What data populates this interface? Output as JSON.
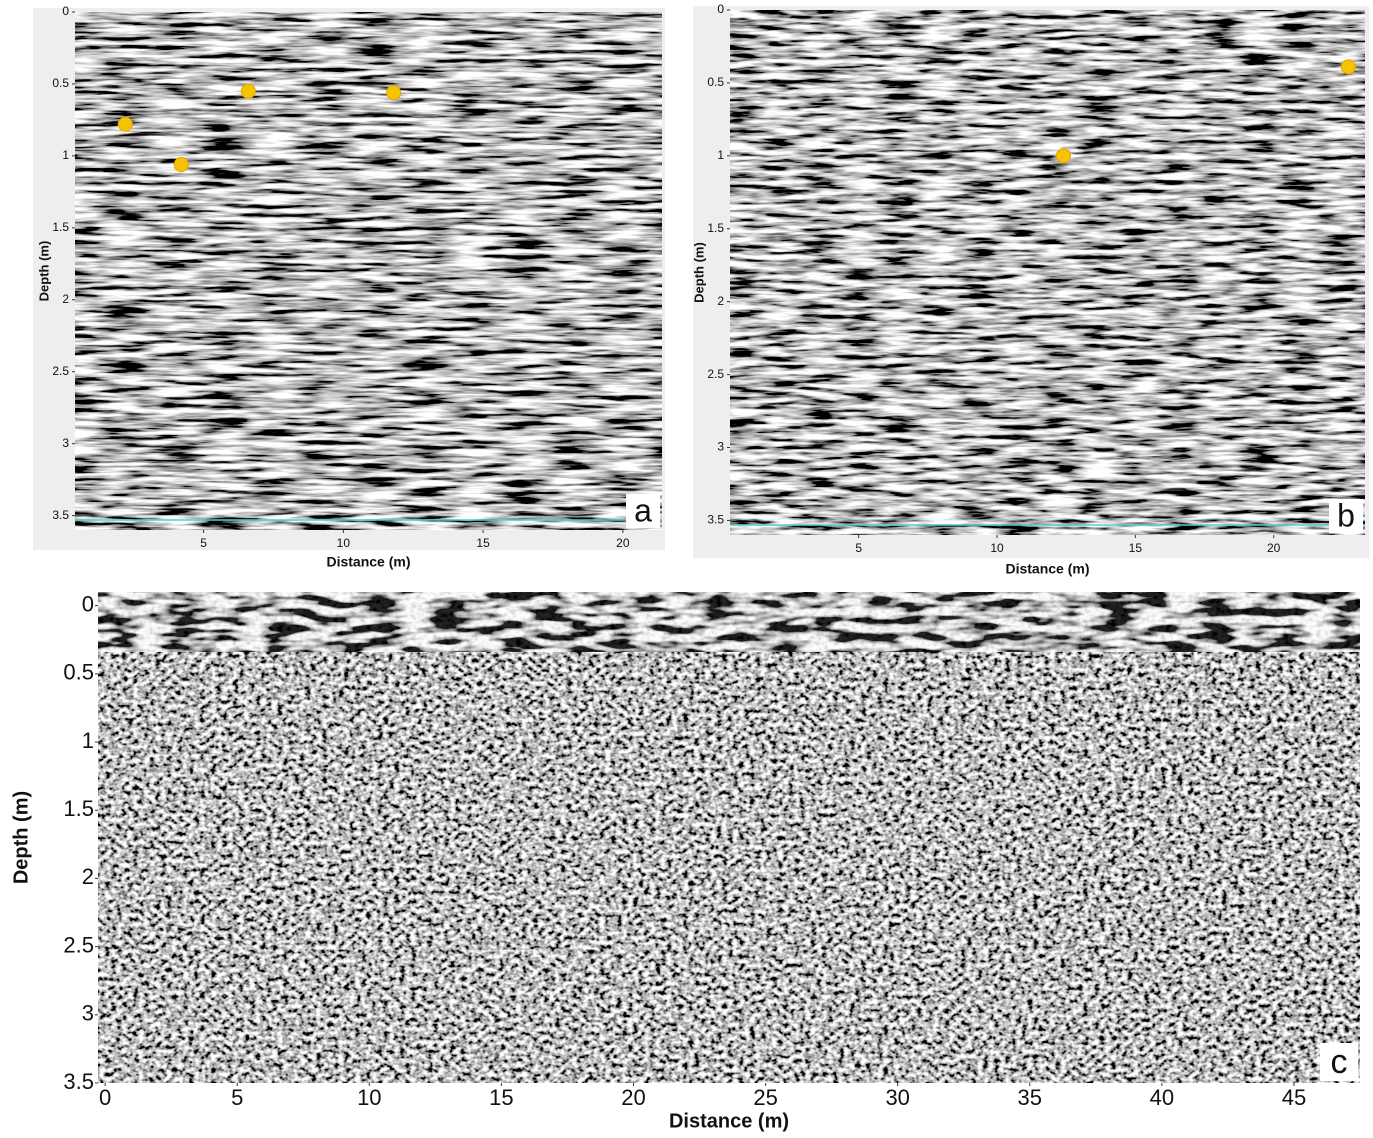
{
  "chart_data": [
    {
      "type": "radargram",
      "panel_label": "a",
      "xlabel": "Distance (m)",
      "ylabel": "Depth (m)",
      "xlim": [
        0.4,
        21.4
      ],
      "ylim": [
        0,
        3.6
      ],
      "xticks": [
        5,
        10,
        15,
        20
      ],
      "yticks": [
        0,
        0.5,
        1,
        1.5,
        2,
        2.5,
        3,
        3.5
      ],
      "x": [
        2.2,
        4.2,
        6.6,
        11.8
      ],
      "values": [
        0.78,
        1.06,
        0.55,
        0.56
      ],
      "color": "#f5c400"
    },
    {
      "type": "radargram",
      "panel_label": "b",
      "xlabel": "Distance (m)",
      "ylabel": "Depth (m)",
      "xlim": [
        0.35,
        23.3
      ],
      "ylim": [
        0,
        3.6
      ],
      "xticks": [
        5,
        10,
        15,
        20
      ],
      "yticks": [
        0,
        0.5,
        1,
        1.5,
        2,
        2.5,
        3,
        3.5
      ],
      "x": [
        12.4,
        22.7
      ],
      "values": [
        1.0,
        0.39
      ],
      "color": "#f5c400"
    },
    {
      "type": "radargram",
      "panel_label": "c",
      "xlabel": "Distance (m)",
      "ylabel": "Depth (m)",
      "xlim": [
        -0.27,
        47.5
      ],
      "ylim": [
        -0.1,
        3.5
      ],
      "xticks": [
        0,
        5,
        10,
        15,
        20,
        25,
        30,
        35,
        40,
        45
      ],
      "yticks": [
        0,
        0.5,
        1,
        1.5,
        2,
        2.5,
        3,
        3.5
      ]
    }
  ]
}
